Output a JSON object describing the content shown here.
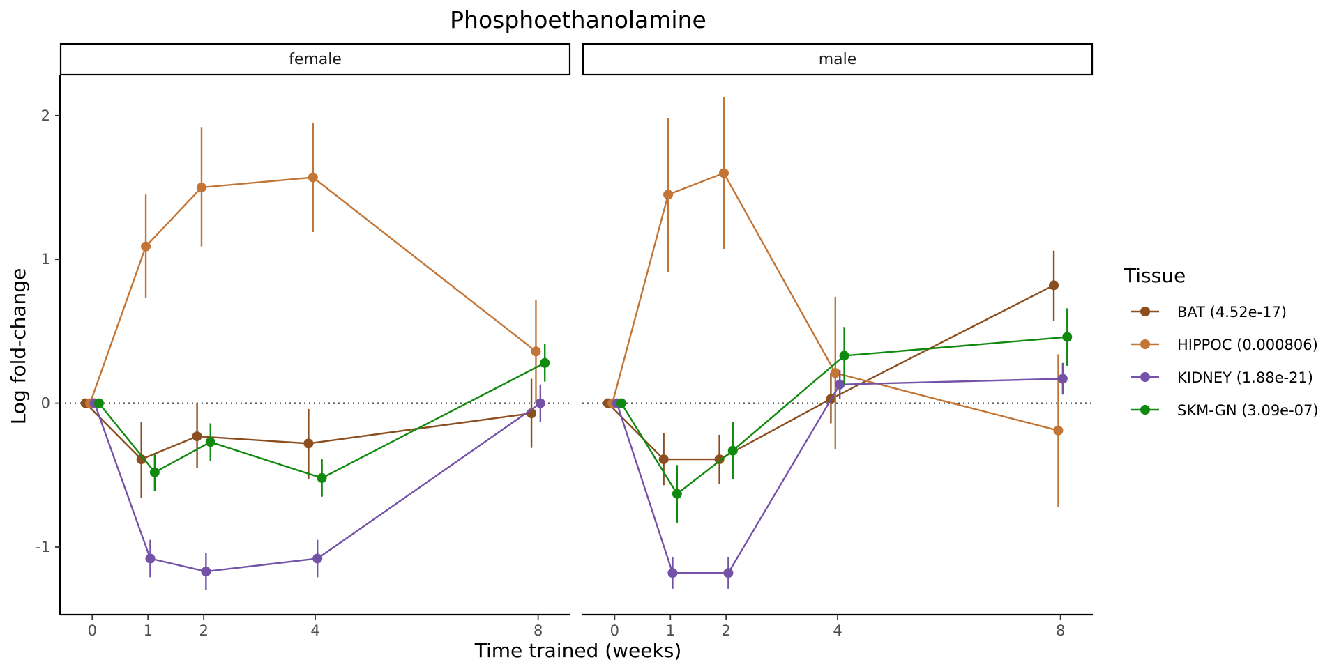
{
  "chart_data": {
    "type": "line",
    "title": "Phosphoethanolamine",
    "xlabel": "Time trained (weeks)",
    "ylabel": "Log fold-change",
    "ylim": [
      -1.47,
      2.28
    ],
    "xlim": [
      -0.58,
      8.58
    ],
    "x_ticks": [
      0,
      1,
      2,
      4,
      8
    ],
    "y_ticks": [
      -1,
      0,
      1,
      2
    ],
    "y_tick_labels": [
      "-1",
      "0",
      "1",
      "2"
    ],
    "reference_line": 0,
    "facets": [
      "female",
      "male"
    ],
    "legend": {
      "title": "Tissue",
      "position": "right"
    },
    "series": [
      {
        "name": "BAT (4.52e-17)",
        "color": "#8B4E1F",
        "dodge": -0.12,
        "x": [
          0,
          1,
          2,
          4,
          8
        ],
        "female": {
          "y": [
            0,
            -0.39,
            -0.23,
            -0.28,
            -0.07
          ],
          "lo": [
            0,
            -0.66,
            -0.45,
            -0.53,
            -0.31
          ],
          "hi": [
            0,
            -0.13,
            0.0,
            -0.04,
            0.17
          ]
        },
        "male": {
          "y": [
            0,
            -0.39,
            -0.39,
            0.03,
            0.82
          ],
          "lo": [
            0,
            -0.57,
            -0.56,
            -0.14,
            0.57
          ],
          "hi": [
            0,
            -0.21,
            -0.22,
            0.21,
            1.06
          ]
        }
      },
      {
        "name": "HIPPOC (0.000806)",
        "color": "#C27535",
        "dodge": -0.04,
        "x": [
          0,
          1,
          2,
          4,
          8
        ],
        "female": {
          "y": [
            0,
            1.09,
            1.5,
            1.57,
            0.36
          ],
          "lo": [
            0,
            0.73,
            1.09,
            1.19,
            0.0
          ],
          "hi": [
            0,
            1.45,
            1.92,
            1.95,
            0.72
          ]
        },
        "male": {
          "y": [
            0,
            1.45,
            1.6,
            0.21,
            -0.19
          ],
          "lo": [
            0,
            0.91,
            1.07,
            -0.32,
            -0.72
          ],
          "hi": [
            0,
            1.98,
            2.13,
            0.74,
            0.34
          ]
        }
      },
      {
        "name": "KIDNEY (1.88e-21)",
        "color": "#7352A8",
        "dodge": 0.04,
        "x": [
          0,
          1,
          2,
          4,
          8
        ],
        "female": {
          "y": [
            0,
            -1.08,
            -1.17,
            -1.08,
            0.0
          ],
          "lo": [
            0,
            -1.21,
            -1.3,
            -1.21,
            -0.13
          ],
          "hi": [
            0,
            -0.95,
            -1.04,
            -0.95,
            0.13
          ]
        },
        "male": {
          "y": [
            0,
            -1.18,
            -1.18,
            0.13,
            0.17
          ],
          "lo": [
            0,
            -1.29,
            -1.29,
            0.03,
            0.06
          ],
          "hi": [
            0,
            -1.07,
            -1.07,
            0.23,
            0.28
          ]
        }
      },
      {
        "name": "SKM-GN (3.09e-07)",
        "color": "#10890F",
        "dodge": 0.12,
        "x": [
          0,
          1,
          2,
          4,
          8
        ],
        "female": {
          "y": [
            0,
            -0.48,
            -0.27,
            -0.52,
            0.28
          ],
          "lo": [
            0,
            -0.61,
            -0.4,
            -0.65,
            0.15
          ],
          "hi": [
            0,
            -0.35,
            -0.14,
            -0.39,
            0.41
          ]
        },
        "male": {
          "y": [
            0,
            -0.63,
            -0.33,
            0.33,
            0.46
          ],
          "lo": [
            0,
            -0.83,
            -0.53,
            0.13,
            0.26
          ],
          "hi": [
            0,
            -0.43,
            -0.13,
            0.53,
            0.66
          ]
        }
      }
    ]
  }
}
